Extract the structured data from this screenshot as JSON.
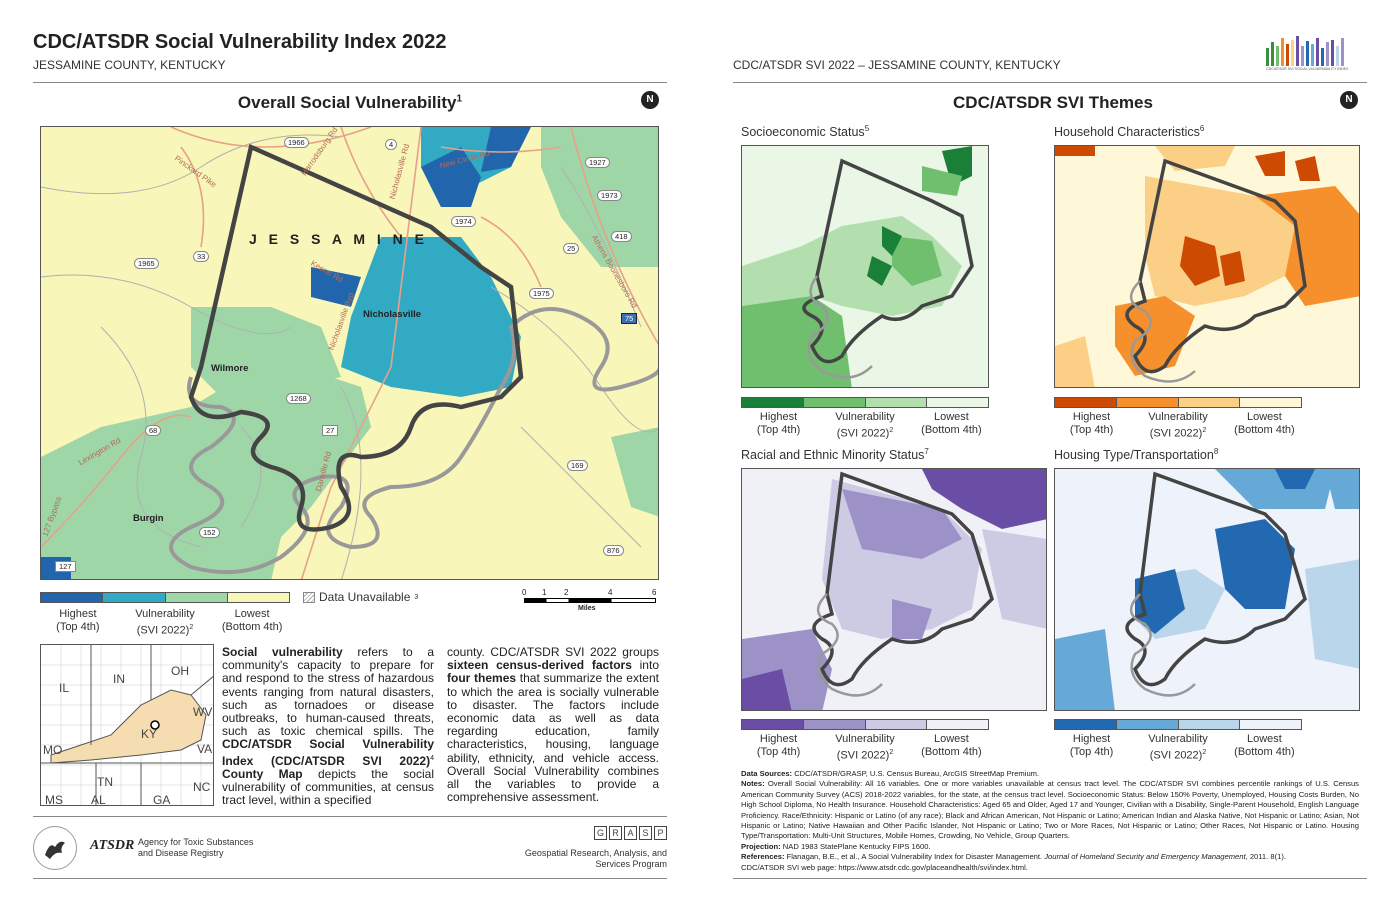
{
  "header": {
    "title": "CDC/ATSDR Social Vulnerability Index 2022",
    "subtitle": "JESSAMINE COUNTY, KENTUCKY",
    "right_subtitle": "CDC/ATSDR SVI 2022 – JESSAMINE COUNTY, KENTUCKY",
    "logo_caption": "CDC/ATSDR SVI SOCIAL VULNERABILITY INDEX"
  },
  "overall": {
    "title": "Overall Social Vulnerability",
    "title_sup": "1",
    "north_label": "N",
    "county_label": "J E S S A M I N E",
    "places": [
      "Nicholasville",
      "Wilmore",
      "Burgin"
    ],
    "roads": [
      "1966",
      "4",
      "1927",
      "1973",
      "1974",
      "418",
      "25",
      "1965",
      "33",
      "1975",
      "75",
      "1268",
      "68",
      "27",
      "169",
      "152",
      "876",
      "127"
    ],
    "road_names": [
      "Pinckard Pike",
      "Harrodsburg Rd",
      "Nicholasville Rd",
      "New Circle Rd",
      "Keene Rd",
      "Nicholasville Byp",
      "Lexington Rd",
      "Danville Rd",
      "127 Bypass",
      "Athens Boonesboro Rd"
    ],
    "legend": {
      "colors": [
        "#2166ac",
        "#33aac4",
        "#9fd6a8",
        "#f8f6b8"
      ],
      "high": "Highest",
      "high2": "(Top 4th)",
      "mid": "Vulnerability",
      "mid2": "(SVI 2022)",
      "mid_sup": "2",
      "low": "Lowest",
      "low2": "(Bottom 4th)",
      "unavailable": "Data Unavailable",
      "unavailable_sup": "3"
    },
    "scale": {
      "ticks": [
        "0",
        "1",
        "2",
        "4",
        "6"
      ],
      "unit": "Miles"
    }
  },
  "locator": {
    "states": [
      "IL",
      "IN",
      "OH",
      "WV",
      "KY",
      "VA",
      "MO",
      "TN",
      "NC",
      "MS",
      "AL",
      "GA"
    ]
  },
  "description": {
    "col1": "refers to a community's capacity to prepare for and respond to the stress of hazardous events ranging from natural disasters, such as tornadoes or disease outbreaks, to human-caused threats, such as toxic chemical spills. The",
    "col1_bold_start": "Social vulnerability",
    "col1_bold_mid": "CDC/ATSDR Social Vulnerability Index (CDC/ATSDR SVI 2022)",
    "col1_sup": "4",
    "col1_bold_end": "County Map",
    "col1_end": "depicts the social vulnerability of communities, at census tract level, within a specified",
    "col2_a": "county. CDC/ATSDR SVI 2022 groups",
    "col2_b": "sixteen census-derived factors",
    "col2_c": "into",
    "col2_d": "four themes",
    "col2_e": "that summarize the extent to which the area is socially vulnerable to disaster. The factors include economic data as well as data regarding education, family characteristics, housing, language ability, ethnicity, and vehicle access. Overall Social Vulnerability combines all the variables to provide a comprehensive assessment."
  },
  "footer": {
    "atsdr": "ATSDR",
    "agency1": "Agency for Toxic Substances",
    "agency2": "and Disease Registry",
    "grasp": [
      "G",
      "R",
      "A",
      "S",
      "P"
    ],
    "grasp1": "Geospatial Research, Analysis, and",
    "grasp2": "Services Program"
  },
  "themes": {
    "title": "CDC/ATSDR SVI Themes",
    "north_label": "N",
    "items": [
      {
        "title": "Socioeconomic Status",
        "sup": "5",
        "colors": [
          "#1a7f37",
          "#6fbf6f",
          "#b3dfae",
          "#eaf6e6"
        ]
      },
      {
        "title": "Household Characteristics",
        "sup": "6",
        "colors": [
          "#cc4a02",
          "#f6902c",
          "#fbcf86",
          "#fef8d8"
        ]
      },
      {
        "title": "Racial and Ethnic Minority Status",
        "sup": "7",
        "colors": [
          "#6a4ea6",
          "#9c92c8",
          "#cccbe3",
          "#f0f0f7"
        ]
      },
      {
        "title": "Housing Type/Transportation",
        "sup": "8",
        "colors": [
          "#2369b1",
          "#67a9d6",
          "#b9d6ea",
          "#eef3fb"
        ]
      }
    ],
    "legend": {
      "high": "Highest",
      "high2": "(Top 4th)",
      "mid": "Vulnerability",
      "mid2": "(SVI 2022)",
      "mid_sup": "2",
      "low": "Lowest",
      "low2": "(Bottom 4th)"
    }
  },
  "notes": {
    "sources_label": "Data Sources:",
    "sources": "CDC/ATSDR/GRASP, U.S. Census Bureau, ArcGIS StreetMap Premium.",
    "notes_label": "Notes:",
    "notes": "Overall Social Vulnerability: All 16 variables. One or more variables unavailable at census tract level. The CDC/ATSDR SVI combines percentile rankings of U.S. Census American Community Survey (ACS) 2018-2022 variables, for the state, at the census tract level. Socioeconomic Status: Below 150% Poverty, Unemployed, Housing Costs Burden, No High School Diploma, No Health Insurance. Household Characteristics: Aged 65 and Older, Aged 17 and Younger, Civilian with a Disability, Single-Parent Household, English Language Proficiency. Race/Ethnicity: Hispanic or Latino (of any race); Black and African American, Not Hispanic or Latino; American Indian and Alaska Native, Not Hispanic or Latino; Asian, Not Hispanic or Latino; Native Hawaiian and Other Pacific Islander, Not Hispanic or Latino; Two or More Races, Not Hispanic or Latino; Other Races, Not Hispanic or Latino. Housing Type/Transportation: Multi-Unit Structures, Mobile Homes, Crowding, No Vehicle, Group Quarters.",
    "projection_label": "Projection:",
    "projection": "NAD 1983 StatePlane Kentucky FIPS 1600.",
    "references_label": "References:",
    "references": "Flanagan, B.E., et al., A Social Vulnerability Index for Disaster Management.",
    "references_journal": "Journal of Homeland Security and Emergency Management",
    "references_end": ", 2011. 8(1).",
    "web": "CDC/ATSDR SVI web page: https://www.atsdr.cdc.gov/placeandhealth/svi/index.html."
  }
}
